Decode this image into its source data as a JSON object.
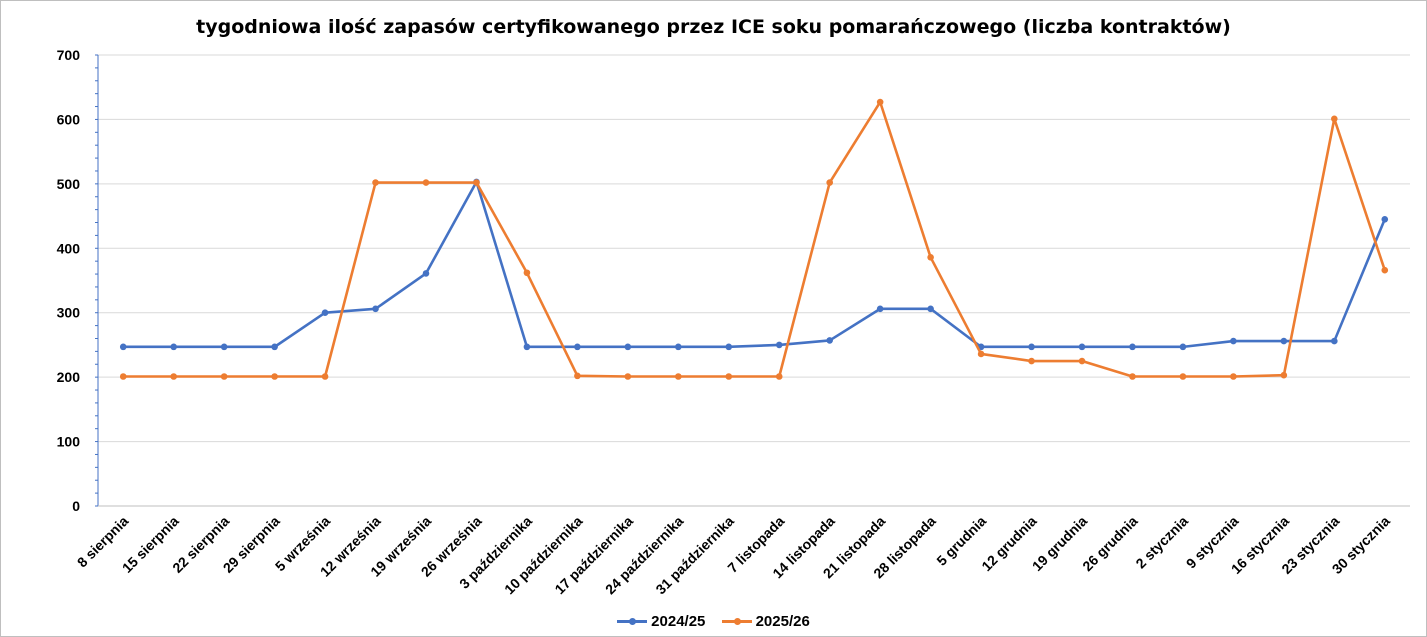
{
  "chart_data": {
    "type": "line",
    "title": "tygodniowa ilość zapasów certyfikowanego przez ICE soku pomarańczowego (liczba kontraktów)",
    "categories": [
      "8 sierpnia",
      "15 sierpnia",
      "22 sierpnia",
      "29 sierpnia",
      "5 września",
      "12 września",
      "19 września",
      "26 września",
      "3 października",
      "10 października",
      "17 października",
      "24 października",
      "31 października",
      "7 listopada",
      "14 listopada",
      "21 listopada",
      "28 listopada",
      "5 grudnia",
      "12 grudnia",
      "19 grudnia",
      "26 grudnia",
      "2 stycznia",
      "9 stycznia",
      "16 stycznia",
      "23 stycznia",
      "30 stycznia"
    ],
    "series": [
      {
        "name": "2024/25",
        "color": "#4472C4",
        "values": [
          247,
          247,
          247,
          247,
          300,
          306,
          361,
          503,
          247,
          247,
          247,
          247,
          247,
          250,
          257,
          306,
          306,
          247,
          247,
          247,
          247,
          247,
          256,
          256,
          256,
          445
        ]
      },
      {
        "name": "2025/26",
        "color": "#ED7D31",
        "values": [
          201,
          201,
          201,
          201,
          201,
          502,
          502,
          502,
          362,
          202,
          201,
          201,
          201,
          201,
          502,
          627,
          386,
          236,
          225,
          225,
          201,
          201,
          201,
          203,
          601,
          366
        ]
      }
    ],
    "ylim": [
      0,
      700
    ],
    "yticks": [
      0,
      100,
      200,
      300,
      400,
      500,
      600,
      700
    ],
    "ytick_labels": [
      "0",
      "100",
      "200",
      "300",
      "400",
      "500",
      "600",
      "700"
    ],
    "grid": true,
    "legend": "bottom"
  }
}
